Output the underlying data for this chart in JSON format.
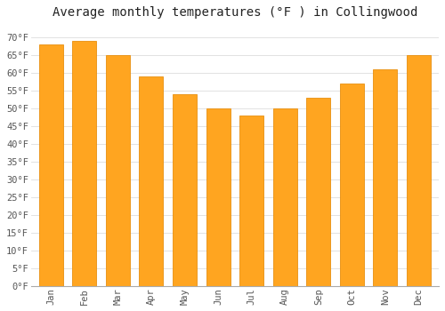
{
  "title": "Average monthly temperatures (°F ) in Collingwood",
  "months": [
    "Jan",
    "Feb",
    "Mar",
    "Apr",
    "May",
    "Jun",
    "Jul",
    "Aug",
    "Sep",
    "Oct",
    "Nov",
    "Dec"
  ],
  "values": [
    68,
    69,
    65,
    59,
    54,
    50,
    48,
    50,
    53,
    57,
    61,
    65
  ],
  "bar_color": "#FFA520",
  "bar_edge_color": "#E89010",
  "background_color": "#FFFFFF",
  "plot_bg_color": "#FFFFFF",
  "grid_color": "#DDDDDD",
  "ylabel_ticks": [
    0,
    5,
    10,
    15,
    20,
    25,
    30,
    35,
    40,
    45,
    50,
    55,
    60,
    65,
    70
  ],
  "ylim": [
    0,
    74
  ],
  "title_fontsize": 10,
  "tick_fontsize": 7.5,
  "bar_width": 0.72
}
